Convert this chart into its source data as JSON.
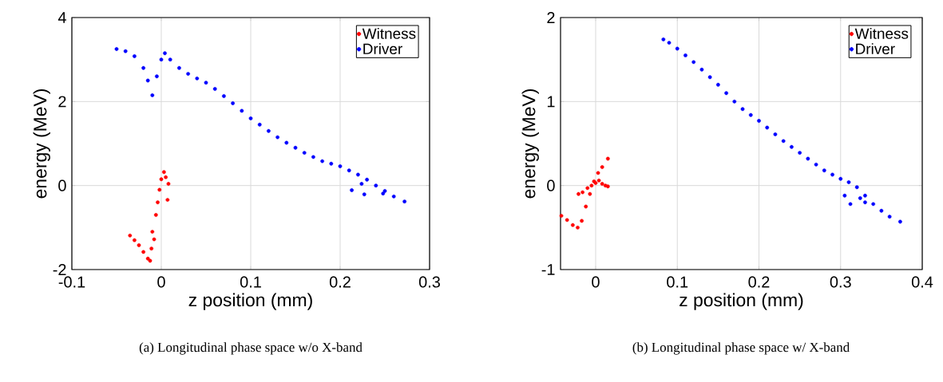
{
  "chart_data": [
    {
      "type": "scatter",
      "xlabel": "z position (mm)",
      "ylabel": "energy (MeV)",
      "xlim": [
        -0.1,
        0.3
      ],
      "ylim": [
        -2,
        4
      ],
      "xticks": [
        -0.1,
        0,
        0.1,
        0.2,
        0.3
      ],
      "yticks": [
        -2,
        0,
        2,
        4
      ],
      "grid": true,
      "legend": "top right",
      "marker": "circle",
      "annotations": [
        "(a) Longitudinal phase space w/o X-band"
      ],
      "series": [
        {
          "name": "Witness",
          "color": "#ff0000",
          "x": [
            -0.035,
            -0.03,
            -0.025,
            -0.02,
            -0.015,
            -0.0125,
            -0.011,
            -0.01,
            -0.008,
            -0.006,
            -0.004,
            -0.002,
            0.0,
            0.003,
            0.005,
            0.007,
            0.008
          ],
          "values": [
            -1.19,
            -1.3,
            -1.42,
            -1.58,
            -1.74,
            -1.79,
            -1.5,
            -1.1,
            -1.28,
            -0.7,
            -0.4,
            -0.1,
            0.15,
            0.32,
            0.2,
            -0.34,
            0.04
          ]
        },
        {
          "name": "Driver",
          "color": "#0000ff",
          "x": [
            -0.05,
            -0.04,
            -0.03,
            -0.02,
            -0.015,
            -0.01,
            -0.005,
            0.0,
            0.004,
            0.01,
            0.02,
            0.03,
            0.04,
            0.05,
            0.06,
            0.07,
            0.08,
            0.09,
            0.1,
            0.11,
            0.12,
            0.13,
            0.14,
            0.15,
            0.16,
            0.17,
            0.18,
            0.19,
            0.2,
            0.21,
            0.22,
            0.23,
            0.24,
            0.25,
            0.26,
            0.272,
            0.213,
            0.227,
            0.224,
            0.248
          ],
          "values": [
            3.25,
            3.2,
            3.08,
            2.8,
            2.5,
            2.15,
            2.6,
            3.0,
            3.15,
            3.0,
            2.8,
            2.66,
            2.55,
            2.45,
            2.3,
            2.13,
            1.96,
            1.78,
            1.6,
            1.45,
            1.3,
            1.15,
            1.02,
            0.9,
            0.78,
            0.68,
            0.58,
            0.52,
            0.46,
            0.36,
            0.26,
            0.14,
            0.0,
            -0.13,
            -0.26,
            -0.38,
            -0.11,
            -0.21,
            0.04,
            -0.19
          ]
        }
      ]
    },
    {
      "type": "scatter",
      "xlabel": "z position (mm)",
      "ylabel": "energy (MeV)",
      "xlim": [
        -0.043,
        0.4
      ],
      "ylim": [
        -1,
        2
      ],
      "xticks": [
        0,
        0.1,
        0.2,
        0.3,
        0.4
      ],
      "yticks": [
        -1,
        0,
        1,
        2
      ],
      "grid": true,
      "legend": "top right",
      "marker": "circle",
      "annotations": [
        "(b) Longitudinal phase space w/ X-band"
      ],
      "series": [
        {
          "name": "Witness",
          "color": "#ff0000",
          "x": [
            -0.042,
            -0.035,
            -0.028,
            -0.022,
            -0.017,
            -0.012,
            -0.007,
            -0.002,
            0.003,
            0.008,
            0.015,
            -0.021,
            -0.016,
            -0.01,
            -0.005,
            0.0,
            0.004,
            0.008,
            0.012,
            0.015
          ],
          "values": [
            -0.36,
            -0.41,
            -0.47,
            -0.5,
            -0.42,
            -0.25,
            -0.1,
            0.05,
            0.15,
            0.22,
            0.32,
            -0.1,
            -0.08,
            -0.03,
            0.0,
            0.03,
            0.06,
            0.02,
            0.0,
            -0.01
          ]
        },
        {
          "name": "Driver",
          "color": "#0000ff",
          "x": [
            0.083,
            0.09,
            0.1,
            0.11,
            0.12,
            0.13,
            0.14,
            0.15,
            0.16,
            0.17,
            0.18,
            0.19,
            0.2,
            0.21,
            0.22,
            0.23,
            0.24,
            0.25,
            0.26,
            0.27,
            0.28,
            0.29,
            0.3,
            0.31,
            0.32,
            0.33,
            0.34,
            0.35,
            0.36,
            0.373,
            0.305,
            0.312,
            0.324,
            0.33
          ],
          "values": [
            1.74,
            1.7,
            1.63,
            1.55,
            1.47,
            1.38,
            1.29,
            1.2,
            1.1,
            1.0,
            0.91,
            0.84,
            0.77,
            0.69,
            0.61,
            0.53,
            0.46,
            0.39,
            0.32,
            0.25,
            0.18,
            0.13,
            0.08,
            0.04,
            -0.02,
            -0.12,
            -0.22,
            -0.3,
            -0.37,
            -0.43,
            -0.12,
            -0.22,
            -0.15,
            -0.2
          ]
        }
      ]
    }
  ]
}
